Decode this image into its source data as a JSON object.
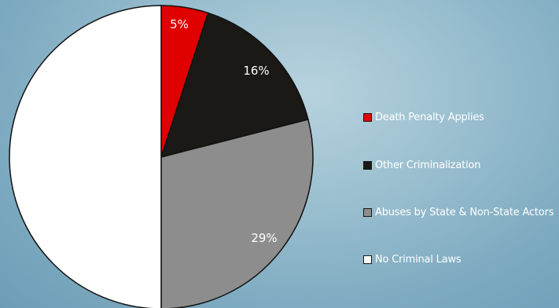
{
  "chart_data": {
    "type": "pie",
    "categories": [
      "Death Penalty Applies",
      "Other Criminalization",
      "Abuses by State & Non-State Actors",
      "No Criminal Laws"
    ],
    "values": [
      5,
      16,
      29,
      50
    ],
    "data_labels": [
      "5%",
      "16%",
      "29%",
      ""
    ],
    "colors": [
      "#e00000",
      "#1b1916",
      "#8d8d8d",
      "#ffffff"
    ],
    "legend": {
      "position": "right",
      "items": [
        {
          "label": "Death Penalty Applies",
          "color": "#e00000"
        },
        {
          "label": "Other Criminalization",
          "color": "#1b1916"
        },
        {
          "label": "Abuses by State & Non-State Actors",
          "color": "#8d8d8d"
        },
        {
          "label": "No Criminal Laws",
          "color": "#ffffff"
        }
      ]
    }
  }
}
